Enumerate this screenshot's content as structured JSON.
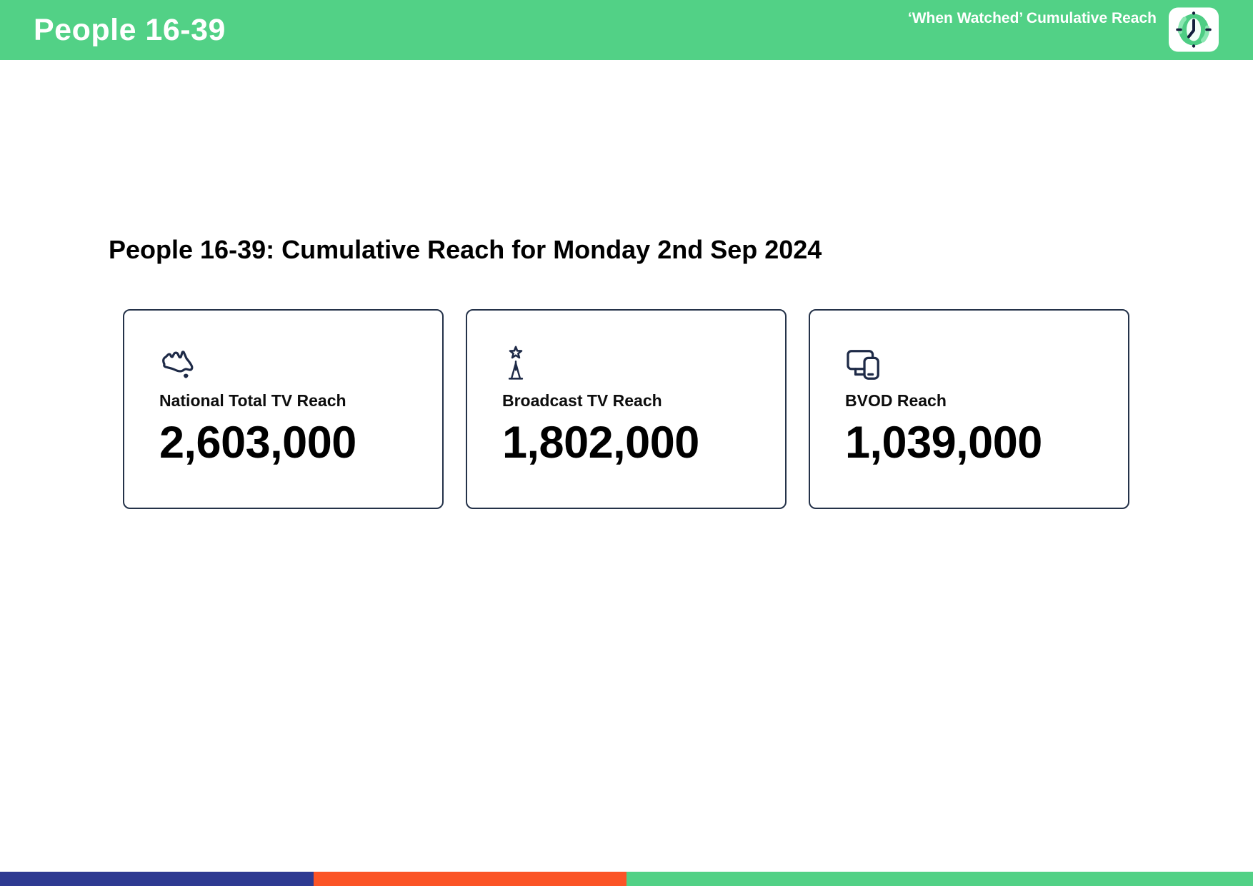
{
  "header": {
    "title": "People 16-39",
    "subtitle": "‘When Watched’ Cumulative Reach",
    "logo_icon": "clock-icon"
  },
  "main": {
    "heading": "People 16-39: Cumulative Reach for Monday 2nd Sep 2024",
    "cards": [
      {
        "icon": "australia-map-icon",
        "label": "National Total TV Reach",
        "value": "2,603,000"
      },
      {
        "icon": "broadcast-tower-icon",
        "label": "Broadcast TV Reach",
        "value": "1,802,000"
      },
      {
        "icon": "devices-icon",
        "label": "BVOD Reach",
        "value": "1,039,000"
      }
    ]
  },
  "footer": {
    "segments": [
      {
        "name": "blue",
        "color": "#2e3a91",
        "width_pct": 25
      },
      {
        "name": "orange",
        "color": "#fb5426",
        "width_pct": 25
      },
      {
        "name": "green",
        "color": "#52d186",
        "width_pct": 50
      }
    ]
  },
  "colors": {
    "header_green": "#52d186",
    "icon_navy": "#1e2a47",
    "card_border": "#243249",
    "text_black": "#000000",
    "text_white": "#ffffff"
  }
}
